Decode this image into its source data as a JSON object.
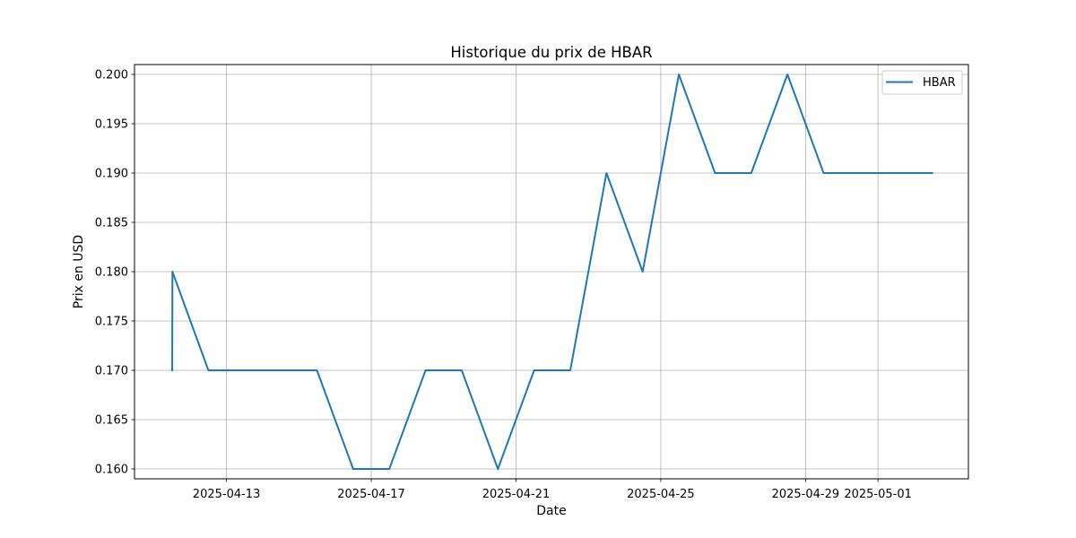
{
  "chart_data": {
    "type": "line",
    "title": "Historique du prix de HBAR",
    "xlabel": "Date",
    "ylabel": "Prix en USD",
    "x_axis_type": "date",
    "xlim": [
      "2025-04-10T11:00",
      "2025-05-03T12:00"
    ],
    "ylim": [
      0.159,
      0.201
    ],
    "y_ticks": [
      0.16,
      0.165,
      0.17,
      0.175,
      0.18,
      0.185,
      0.19,
      0.195,
      0.2
    ],
    "y_tick_labels": [
      "0.160",
      "0.165",
      "0.170",
      "0.175",
      "0.180",
      "0.185",
      "0.190",
      "0.195",
      "0.200"
    ],
    "x_ticks": [
      "2025-04-13",
      "2025-04-17",
      "2025-04-21",
      "2025-04-25",
      "2025-04-29",
      "2025-05-01"
    ],
    "x_tick_labels": [
      "2025-04-13",
      "2025-04-17",
      "2025-04-21",
      "2025-04-25",
      "2025-04-29",
      "2025-05-01"
    ],
    "grid": true,
    "legend_position": "top-right",
    "series": [
      {
        "name": "HBAR",
        "color": "#1f77b4",
        "points": [
          {
            "x": "2025-04-11T12:00",
            "y": 0.17
          },
          {
            "x": "2025-04-11T12:10",
            "y": 0.18
          },
          {
            "x": "2025-04-12T12:00",
            "y": 0.17
          },
          {
            "x": "2025-04-13T12:00",
            "y": 0.17
          },
          {
            "x": "2025-04-14T12:00",
            "y": 0.17
          },
          {
            "x": "2025-04-15T12:00",
            "y": 0.17
          },
          {
            "x": "2025-04-16T12:00",
            "y": 0.16
          },
          {
            "x": "2025-04-17T12:00",
            "y": 0.16
          },
          {
            "x": "2025-04-18T12:00",
            "y": 0.17
          },
          {
            "x": "2025-04-19T12:00",
            "y": 0.17
          },
          {
            "x": "2025-04-20T12:00",
            "y": 0.16
          },
          {
            "x": "2025-04-21T12:00",
            "y": 0.17
          },
          {
            "x": "2025-04-22T12:00",
            "y": 0.17
          },
          {
            "x": "2025-04-23T12:00",
            "y": 0.19
          },
          {
            "x": "2025-04-24T12:00",
            "y": 0.18
          },
          {
            "x": "2025-04-25T00:00",
            "y": 0.19
          },
          {
            "x": "2025-04-25T12:00",
            "y": 0.2
          },
          {
            "x": "2025-04-26T12:00",
            "y": 0.19
          },
          {
            "x": "2025-04-27T12:00",
            "y": 0.19
          },
          {
            "x": "2025-04-28T12:00",
            "y": 0.2
          },
          {
            "x": "2025-04-29T12:00",
            "y": 0.19
          },
          {
            "x": "2025-04-30T12:00",
            "y": 0.19
          },
          {
            "x": "2025-05-01T12:00",
            "y": 0.19
          },
          {
            "x": "2025-05-02T12:00",
            "y": 0.19
          }
        ]
      }
    ]
  }
}
